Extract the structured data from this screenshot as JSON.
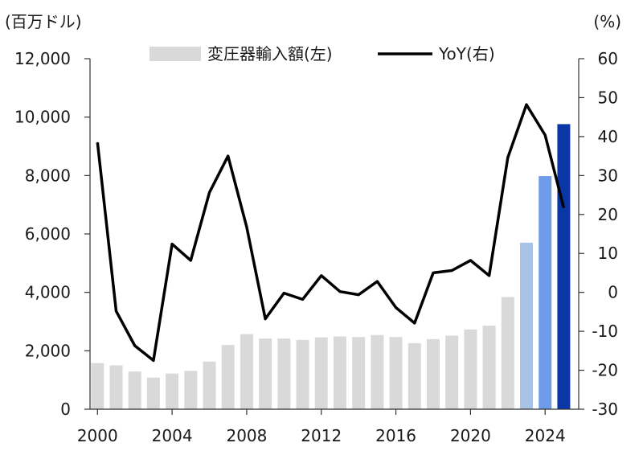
{
  "chart_data": {
    "type": "bar+line",
    "left_unit": "(百万ドル)",
    "right_unit": "(%)",
    "x_ticks": [
      "2000",
      "2004",
      "2008",
      "2012",
      "2016",
      "2020",
      "2024"
    ],
    "left_ticks": [
      "0",
      "2,000",
      "4,000",
      "6,000",
      "8,000",
      "10,000",
      "12,000"
    ],
    "right_ticks": [
      "-30",
      "-20",
      "-10",
      "0",
      "10",
      "20",
      "30",
      "40",
      "50",
      "60"
    ],
    "left_ylim": [
      0,
      12000
    ],
    "right_ylim": [
      -30,
      60
    ],
    "years": [
      2000,
      2001,
      2002,
      2003,
      2004,
      2005,
      2006,
      2007,
      2008,
      2009,
      2010,
      2011,
      2012,
      2013,
      2014,
      2015,
      2016,
      2017,
      2018,
      2019,
      2020,
      2021,
      2022,
      2023,
      2024,
      2025
    ],
    "series": [
      {
        "name": "変圧器輸入額(左)",
        "type": "bar",
        "axis": "left",
        "values": [
          1580,
          1500,
          1290,
          1080,
          1220,
          1310,
          1630,
          2200,
          2570,
          2420,
          2420,
          2370,
          2460,
          2490,
          2470,
          2540,
          2470,
          2260,
          2400,
          2520,
          2730,
          2860,
          3840,
          5700,
          7980,
          9760
        ]
      },
      {
        "name": "YoY(右)",
        "type": "line",
        "axis": "right",
        "values": [
          38.5,
          -4.8,
          -13.7,
          -17.5,
          12.4,
          8.2,
          25.6,
          35.0,
          16.8,
          -6.8,
          -0.2,
          -1.8,
          4.3,
          0.2,
          -0.6,
          2.8,
          -3.9,
          -7.9,
          5.0,
          5.6,
          8.2,
          4.3,
          34.6,
          48.2,
          40.4,
          21.7
        ]
      }
    ],
    "bar_colors": {
      "default": "#d9d9d9",
      "2023": "#a9c3e6",
      "2024": "#6f9bea",
      "2025": "#0a36a6"
    },
    "line_color": "#000000",
    "legend_placement": "top"
  }
}
